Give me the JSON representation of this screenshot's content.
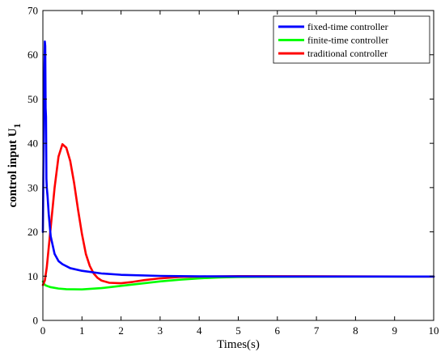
{
  "chart_data": {
    "type": "line",
    "xlabel": "Times(s)",
    "ylabel": "control input U",
    "ylabel_subscript": "1",
    "xlim": [
      0,
      10
    ],
    "ylim": [
      0,
      70
    ],
    "xticks": [
      0,
      1,
      2,
      3,
      4,
      5,
      6,
      7,
      8,
      9,
      10
    ],
    "yticks": [
      0,
      10,
      20,
      30,
      40,
      50,
      60,
      70
    ],
    "grid": false,
    "legend_position": "top-right",
    "series": [
      {
        "name": "fixed-time controller",
        "color": "#0000ff",
        "points": [
          [
            0.0,
            20
          ],
          [
            0.02,
            40
          ],
          [
            0.04,
            58
          ],
          [
            0.05,
            63
          ],
          [
            0.06,
            62
          ],
          [
            0.07,
            48
          ],
          [
            0.08,
            46
          ],
          [
            0.09,
            32
          ],
          [
            0.1,
            30
          ],
          [
            0.12,
            28
          ],
          [
            0.15,
            24
          ],
          [
            0.2,
            19
          ],
          [
            0.3,
            15
          ],
          [
            0.4,
            13.4
          ],
          [
            0.5,
            12.7
          ],
          [
            0.7,
            11.8
          ],
          [
            1.0,
            11.2
          ],
          [
            1.5,
            10.6
          ],
          [
            2.0,
            10.3
          ],
          [
            3.0,
            10.05
          ],
          [
            4.0,
            9.95
          ],
          [
            6.0,
            9.9
          ],
          [
            10.0,
            9.9
          ]
        ]
      },
      {
        "name": "finite-time controller",
        "color": "#00ff00",
        "points": [
          [
            0.0,
            8.8
          ],
          [
            0.05,
            8.0
          ],
          [
            0.1,
            7.8
          ],
          [
            0.2,
            7.5
          ],
          [
            0.4,
            7.2
          ],
          [
            0.6,
            7.05
          ],
          [
            1.0,
            7.0
          ],
          [
            1.5,
            7.3
          ],
          [
            2.0,
            7.8
          ],
          [
            2.5,
            8.3
          ],
          [
            3.0,
            8.8
          ],
          [
            3.5,
            9.2
          ],
          [
            4.0,
            9.5
          ],
          [
            4.5,
            9.7
          ],
          [
            5.0,
            9.8
          ],
          [
            6.0,
            9.85
          ],
          [
            8.0,
            9.9
          ],
          [
            10.0,
            9.9
          ]
        ]
      },
      {
        "name": "traditional controller",
        "color": "#ff0000",
        "points": [
          [
            0.0,
            8
          ],
          [
            0.05,
            9
          ],
          [
            0.1,
            12
          ],
          [
            0.2,
            21
          ],
          [
            0.3,
            30
          ],
          [
            0.4,
            37
          ],
          [
            0.5,
            39.8
          ],
          [
            0.6,
            39
          ],
          [
            0.7,
            36
          ],
          [
            0.8,
            31
          ],
          [
            0.9,
            25
          ],
          [
            1.0,
            19.5
          ],
          [
            1.1,
            15
          ],
          [
            1.2,
            12.3
          ],
          [
            1.3,
            10.6
          ],
          [
            1.4,
            9.6
          ],
          [
            1.5,
            9.0
          ],
          [
            1.7,
            8.5
          ],
          [
            2.0,
            8.4
          ],
          [
            2.3,
            8.7
          ],
          [
            2.6,
            9.1
          ],
          [
            3.0,
            9.5
          ],
          [
            3.5,
            9.8
          ],
          [
            4.0,
            9.9
          ],
          [
            5.0,
            10.0
          ],
          [
            10.0,
            9.9
          ]
        ]
      }
    ]
  }
}
